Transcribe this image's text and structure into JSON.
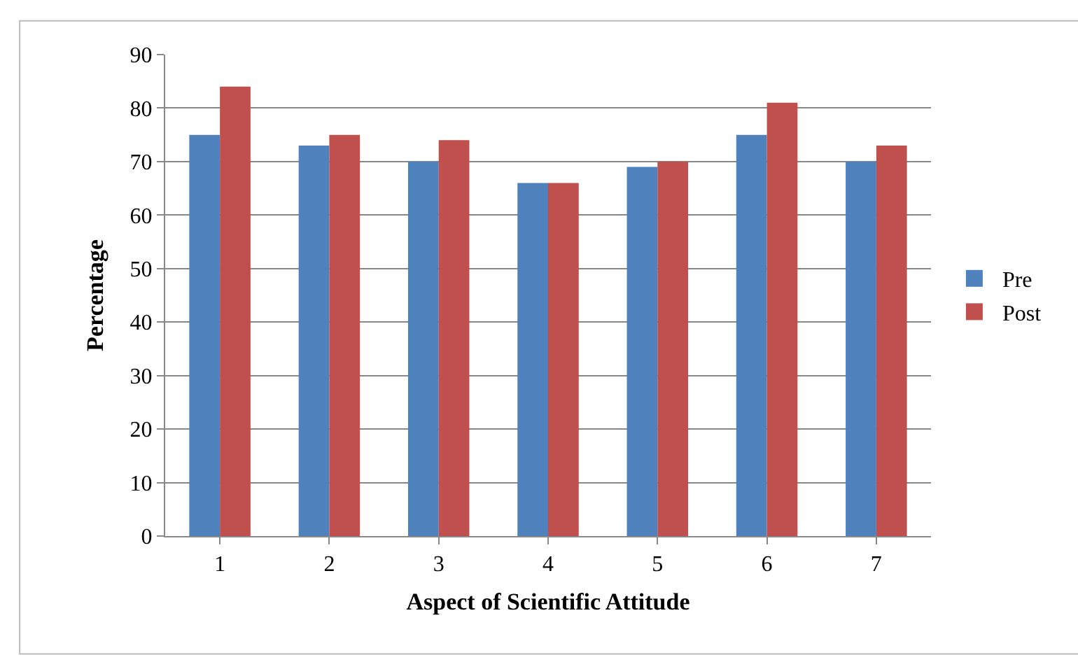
{
  "chart_data": {
    "type": "bar",
    "xlabel": "Aspect of Scientific Attitude",
    "ylabel": "Percentage",
    "categories": [
      "1",
      "2",
      "3",
      "4",
      "5",
      "6",
      "7"
    ],
    "series": [
      {
        "name": "Pre",
        "color": "#4f81bd",
        "values": [
          75,
          73,
          70,
          66,
          69,
          75,
          70
        ]
      },
      {
        "name": "Post",
        "color": "#c0504d",
        "values": [
          84,
          75,
          74,
          66,
          70,
          81,
          73
        ]
      }
    ],
    "ylim": [
      0,
      90
    ],
    "yticks": [
      0,
      10,
      20,
      30,
      40,
      50,
      60,
      70,
      80,
      90
    ],
    "grid": "y",
    "legend": "right"
  }
}
